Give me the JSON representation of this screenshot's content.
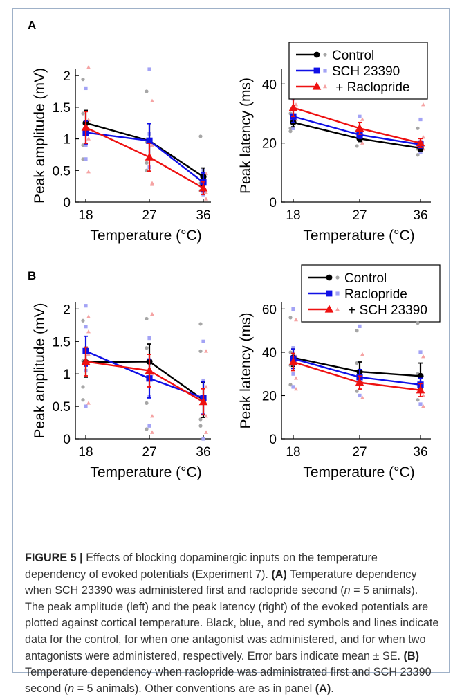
{
  "figure": {
    "caption_label": "FIGURE 5",
    "caption_sep": " | ",
    "caption_text_1": "Effects of blocking dopaminergic inputs on the temperature dependency of evoked potentials (Experiment 7). ",
    "caption_A_ref": "(A)",
    "caption_text_2": " Temperature dependency when SCH 23390 was administered first and raclopride second (",
    "caption_n": "n",
    "caption_text_3": " = 5 animals). The peak amplitude (left) and the peak latency (right) of the evoked potentials are plotted against cortical temperature. Black, blue, and red symbols and lines indicate data for the control, for when one antagonist was administered, and for when two antagonists were administered, respectively. Error bars indicate mean ± SE. ",
    "caption_B_ref": "(B)",
    "caption_text_4": " Temperature dependency when raclopride was administrated first and SCH 23390 second (",
    "caption_text_5": " = 5 animals). Other conventions are as in panel ",
    "caption_A_ref_end": "(A)",
    "caption_end": "."
  },
  "colors": {
    "control": "#000000",
    "one_drug": "#1010e6",
    "two_drugs": "#ee1111",
    "control_faint": "#a6a6a6",
    "one_faint": "#a3a3f5",
    "two_faint": "#f5a3a3"
  },
  "chart_data": [
    {
      "panel": "A",
      "type": "line",
      "title": "",
      "xlabel": "Temperature (°C)",
      "ylabel": "Peak amplitude (mV)",
      "x": [
        18,
        27,
        36
      ],
      "xticks": [
        "18",
        "27",
        "36"
      ],
      "ylim": [
        0,
        2.1
      ],
      "yticks": [
        0,
        0.5,
        1,
        1.5,
        2
      ],
      "ytick_labels": [
        "0",
        "0.5",
        "1",
        "1.5",
        "2"
      ],
      "legend": false,
      "series": [
        {
          "key": "control",
          "values": [
            1.25,
            0.97,
            0.4
          ],
          "err": [
            0.2,
            0.27,
            0.14
          ],
          "scatter": [
            [
              18,
              1.94
            ],
            [
              18,
              0.9
            ],
            [
              18,
              0.68
            ],
            [
              18,
              1.4
            ],
            [
              27,
              1.75
            ],
            [
              27,
              0.95
            ],
            [
              27,
              0.5
            ],
            [
              27,
              0.62
            ],
            [
              36,
              1.04
            ],
            [
              36,
              0.18
            ],
            [
              36,
              0.3
            ]
          ]
        },
        {
          "key": "one_drug",
          "values": [
            1.1,
            0.97,
            0.31
          ],
          "err": [
            0.18,
            0.27,
            0.15
          ],
          "scatter": [
            [
              18,
              1.8
            ],
            [
              18,
              1.2
            ],
            [
              18,
              0.9
            ],
            [
              18,
              0.68
            ],
            [
              27,
              2.1
            ],
            [
              27,
              1.08
            ],
            [
              27,
              0.7
            ],
            [
              27,
              0.55
            ],
            [
              36,
              0.5
            ],
            [
              36,
              0.25
            ],
            [
              36,
              0.12
            ]
          ]
        },
        {
          "key": "two_drugs",
          "values": [
            1.18,
            0.71,
            0.22
          ],
          "err": [
            0.25,
            0.22,
            0.1
          ],
          "scatter": [
            [
              18,
              2.13
            ],
            [
              18,
              1.3
            ],
            [
              18,
              1.0
            ],
            [
              18,
              0.48
            ],
            [
              27,
              1.6
            ],
            [
              27,
              0.9
            ],
            [
              27,
              0.3
            ],
            [
              27,
              0.28
            ],
            [
              36,
              0.45
            ],
            [
              36,
              0.15
            ],
            [
              36,
              0.05
            ]
          ]
        }
      ]
    },
    {
      "panel": "A",
      "type": "line",
      "title": "",
      "xlabel": "Temperature (°C)",
      "ylabel": "Peak latency (ms)",
      "x": [
        18,
        27,
        36
      ],
      "xticks": [
        "18",
        "27",
        "36"
      ],
      "ylim": [
        0,
        45
      ],
      "yticks": [
        0,
        20,
        40
      ],
      "ytick_labels": [
        "0",
        "20",
        "40"
      ],
      "legend": true,
      "legend_labels": [
        "Control",
        "SCH 23390",
        " + Raclopride"
      ],
      "series": [
        {
          "key": "control",
          "values": [
            27,
            21.5,
            18.3
          ],
          "err": [
            1.5,
            1.0,
            1.0
          ],
          "scatter": [
            [
              18,
              25
            ],
            [
              18,
              30
            ],
            [
              18,
              24
            ],
            [
              27,
              19
            ],
            [
              27,
              24
            ],
            [
              36,
              25
            ],
            [
              36,
              16
            ],
            [
              36,
              18
            ]
          ]
        },
        {
          "key": "one_drug",
          "values": [
            29,
            22.8,
            19.5
          ],
          "err": [
            2.0,
            1.2,
            1.2
          ],
          "scatter": [
            [
              18,
              35
            ],
            [
              18,
              27
            ],
            [
              18,
              25
            ],
            [
              27,
              29
            ],
            [
              27,
              21
            ],
            [
              36,
              28
            ],
            [
              36,
              17
            ]
          ]
        },
        {
          "key": "two_drugs",
          "values": [
            32,
            25,
            20
          ],
          "err": [
            3.0,
            2.0,
            1.5
          ],
          "scatter": [
            [
              18,
              44
            ],
            [
              18,
              33
            ],
            [
              18,
              28
            ],
            [
              27,
              37
            ],
            [
              27,
              28
            ],
            [
              27,
              20
            ],
            [
              36,
              33
            ],
            [
              36,
              22
            ],
            [
              36,
              18
            ]
          ]
        }
      ]
    },
    {
      "panel": "B",
      "type": "line",
      "title": "",
      "xlabel": "Temperature (°C)",
      "ylabel": "Peak amplitude (mV)",
      "x": [
        18,
        27,
        36
      ],
      "xticks": [
        "18",
        "27",
        "36"
      ],
      "ylim": [
        0,
        2.1
      ],
      "yticks": [
        0,
        0.5,
        1,
        1.5,
        2
      ],
      "ytick_labels": [
        "0",
        "0.5",
        "1",
        "1.5",
        "2"
      ],
      "legend": true,
      "legend_labels": [
        "Control",
        "Raclopride",
        " + SCH 23390"
      ],
      "series": [
        {
          "key": "control",
          "values": [
            1.18,
            1.19,
            0.6
          ],
          "err": [
            0.23,
            0.27,
            0.27
          ],
          "scatter": [
            [
              18,
              1.82
            ],
            [
              18,
              1.2
            ],
            [
              18,
              0.8
            ],
            [
              18,
              0.6
            ],
            [
              27,
              1.85
            ],
            [
              27,
              1.4
            ],
            [
              27,
              0.55
            ],
            [
              27,
              0.15
            ],
            [
              36,
              1.77
            ],
            [
              36,
              1.35
            ],
            [
              36,
              0.6
            ],
            [
              36,
              0.3
            ],
            [
              36,
              0.2
            ]
          ]
        },
        {
          "key": "one_drug",
          "values": [
            1.35,
            0.93,
            0.63
          ],
          "err": [
            0.23,
            0.3,
            0.25
          ],
          "scatter": [
            [
              18,
              2.05
            ],
            [
              18,
              1.73
            ],
            [
              18,
              1.05
            ],
            [
              18,
              0.5
            ],
            [
              27,
              1.55
            ],
            [
              27,
              1.2
            ],
            [
              27,
              0.65
            ],
            [
              27,
              0.2
            ],
            [
              36,
              1.5
            ],
            [
              36,
              0.9
            ],
            [
              36,
              0.0
            ]
          ]
        },
        {
          "key": "two_drugs",
          "values": [
            1.19,
            1.05,
            0.57
          ],
          "err": [
            0.22,
            0.25,
            0.2
          ],
          "scatter": [
            [
              18,
              1.88
            ],
            [
              18,
              1.65
            ],
            [
              18,
              1.3
            ],
            [
              18,
              0.55
            ],
            [
              27,
              1.92
            ],
            [
              27,
              1.0
            ],
            [
              27,
              0.35
            ],
            [
              27,
              0.1
            ],
            [
              36,
              1.35
            ],
            [
              36,
              0.8
            ],
            [
              36,
              0.35
            ],
            [
              36,
              0.1
            ]
          ]
        }
      ]
    },
    {
      "panel": "B",
      "type": "line",
      "title": "",
      "xlabel": "Temperature (°C)",
      "ylabel": "Peak latency (ms)",
      "x": [
        18,
        27,
        36
      ],
      "xticks": [
        "18",
        "27",
        "36"
      ],
      "ylim": [
        0,
        63
      ],
      "yticks": [
        0,
        20,
        40,
        60
      ],
      "ytick_labels": [
        "0",
        "20",
        "40",
        "60"
      ],
      "legend": false,
      "series": [
        {
          "key": "control",
          "values": [
            37.5,
            31,
            29
          ],
          "err": [
            4.0,
            4.5,
            6.0
          ],
          "scatter": [
            [
              18,
              56
            ],
            [
              18,
              40
            ],
            [
              18,
              34
            ],
            [
              18,
              25
            ],
            [
              27,
              50
            ],
            [
              27,
              35
            ],
            [
              27,
              22
            ],
            [
              36,
              53.5
            ],
            [
              36,
              30
            ],
            [
              36,
              18
            ]
          ]
        },
        {
          "key": "one_drug",
          "values": [
            37,
            28.5,
            25
          ],
          "err": [
            4.5,
            3.5,
            3.0
          ],
          "scatter": [
            [
              18,
              60
            ],
            [
              18,
              42
            ],
            [
              18,
              30
            ],
            [
              18,
              24
            ],
            [
              27,
              52
            ],
            [
              27,
              30
            ],
            [
              27,
              20
            ],
            [
              36,
              40
            ],
            [
              36,
              25
            ],
            [
              36,
              16
            ]
          ]
        },
        {
          "key": "two_drugs",
          "values": [
            35.5,
            26,
            22.5
          ],
          "err": [
            4.0,
            3.0,
            3.0
          ],
          "scatter": [
            [
              18,
              55
            ],
            [
              18,
              38
            ],
            [
              18,
              28
            ],
            [
              18,
              23
            ],
            [
              27,
              39
            ],
            [
              27,
              26
            ],
            [
              27,
              19
            ],
            [
              36,
              38
            ],
            [
              36,
              20
            ],
            [
              36,
              15
            ]
          ]
        }
      ]
    }
  ],
  "panel_labels": [
    "A",
    "B"
  ]
}
